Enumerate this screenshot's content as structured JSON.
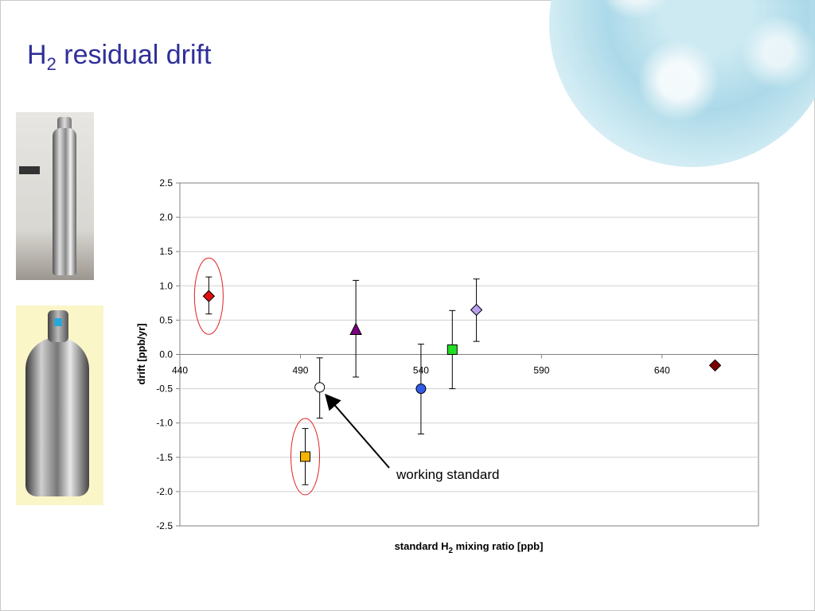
{
  "slide": {
    "title_main": "H",
    "title_sub": "2",
    "title_rest": " residual drift"
  },
  "images": [
    {
      "icon": "tall-gas-cylinder-photo"
    },
    {
      "icon": "spherical-gas-cylinder-photo"
    }
  ],
  "chart_data": {
    "type": "scatter",
    "xlabel_main": "standard H",
    "xlabel_sub": "2",
    "xlabel_rest": " mixing ratio [ppb]",
    "ylabel": "drift [ppb/yr]",
    "xlim": [
      440,
      680
    ],
    "ylim": [
      -2.5,
      2.5
    ],
    "x_ticks": [
      "440",
      "490",
      "540",
      "590",
      "640"
    ],
    "y_ticks": [
      "2.5",
      "2.0",
      "1.5",
      "1.0",
      "0.5",
      "0.0",
      "-0.5",
      "-1.0",
      "-1.5",
      "-2.0",
      "-2.5"
    ],
    "grid": true,
    "legend": "none",
    "series": [
      {
        "x": 452,
        "y": 0.85,
        "err_low": 0.59,
        "err_high": 1.13,
        "marker": "diamond",
        "color": "#e01010",
        "circled": true
      },
      {
        "x": 492,
        "y": -1.49,
        "err_low": -1.9,
        "err_high": -1.08,
        "marker": "square",
        "color": "#f5b400",
        "circled": true
      },
      {
        "x": 498,
        "y": -0.48,
        "err_low": -0.93,
        "err_high": -0.05,
        "marker": "circle",
        "color": "#ffffff"
      },
      {
        "x": 513,
        "y": 0.36,
        "err_low": -0.33,
        "err_high": 1.08,
        "marker": "triangle",
        "color": "#7a0080"
      },
      {
        "x": 540,
        "y": -0.5,
        "err_low": -1.16,
        "err_high": 0.15,
        "marker": "circle",
        "color": "#2e5be8"
      },
      {
        "x": 553,
        "y": 0.07,
        "err_low": -0.5,
        "err_high": 0.64,
        "marker": "square",
        "color": "#22dd22"
      },
      {
        "x": 563,
        "y": 0.65,
        "err_low": 0.19,
        "err_high": 1.1,
        "marker": "diamond",
        "color": "#b9a0f0"
      },
      {
        "x": 662,
        "y": -0.16,
        "marker": "diamond",
        "color": "#7a0000"
      }
    ],
    "annotation": {
      "text": "working standard",
      "target_x": 498,
      "target_y": -0.48
    }
  }
}
